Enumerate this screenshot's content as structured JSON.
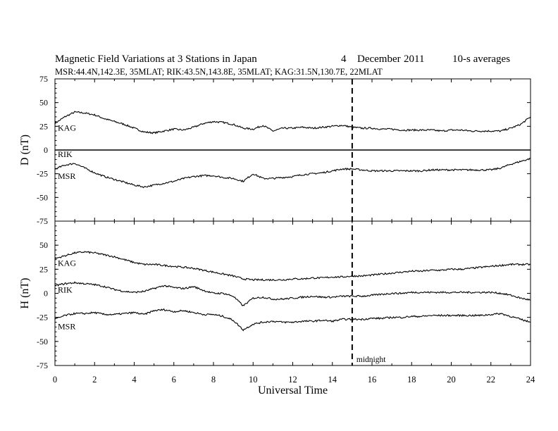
{
  "header": {
    "title": "Magnetic Field Variations at 3 Stations in Japan",
    "day": "4",
    "month": "December",
    "year": "2011",
    "averaging": "10-s averages",
    "subtitle": "MSR:44.4N,142.3E, 35MLAT;  RIK:43.5N,143.8E, 35MLAT;  KAG:31.5N,130.7E, 22MLAT"
  },
  "chart_data": [
    {
      "type": "line",
      "panel": "top",
      "ylabel": "D (nT)",
      "ylim": [
        -75,
        75
      ],
      "yticks": [
        "75",
        "50",
        "25",
        "0",
        "-25",
        "-50",
        "-75"
      ],
      "xlim": [
        0,
        24
      ],
      "series": [
        {
          "name": "KAG",
          "x": [
            0,
            0.5,
            1,
            1.5,
            2,
            2.5,
            3,
            3.5,
            4,
            4.5,
            5,
            5.5,
            6,
            6.5,
            7,
            7.5,
            8,
            8.5,
            9,
            9.5,
            10,
            10.5,
            11,
            11.5,
            12,
            12.5,
            13,
            13.5,
            14,
            14.5,
            15,
            15.5,
            16,
            16.5,
            17,
            17.5,
            18,
            18.5,
            19,
            19.5,
            20,
            20.5,
            21,
            21.5,
            22,
            22.5,
            23,
            23.5,
            24
          ],
          "y": [
            28,
            35,
            40,
            39,
            37,
            33,
            30,
            27,
            23,
            19,
            18,
            20,
            22,
            21,
            24,
            28,
            30,
            29,
            27,
            23,
            22,
            26,
            20,
            23,
            23,
            24,
            23,
            24,
            25,
            26,
            24,
            23,
            23,
            22,
            22,
            21,
            21,
            21,
            21,
            20,
            21,
            21,
            20,
            20,
            20,
            20,
            23,
            27,
            35
          ]
        },
        {
          "name": "RIK",
          "x": [
            0,
            24
          ],
          "y": [
            0,
            0
          ]
        },
        {
          "name": "MSR",
          "x": [
            0,
            0.5,
            1,
            1.5,
            2,
            2.5,
            3,
            3.5,
            4,
            4.5,
            5,
            5.5,
            6,
            6.5,
            7,
            7.5,
            8,
            8.5,
            9,
            9.5,
            10,
            10.5,
            11,
            11.5,
            12,
            12.5,
            13,
            13.5,
            14,
            14.5,
            15,
            15.5,
            16,
            16.5,
            17,
            17.5,
            18,
            18.5,
            19,
            19.5,
            20,
            20.5,
            21,
            21.5,
            22,
            22.5,
            23,
            23.5,
            24
          ],
          "y": [
            -20,
            -16,
            -14,
            -19,
            -24,
            -28,
            -31,
            -34,
            -37,
            -39,
            -37,
            -35,
            -33,
            -30,
            -28,
            -27,
            -27,
            -29,
            -30,
            -33,
            -25,
            -30,
            -30,
            -29,
            -28,
            -26,
            -25,
            -24,
            -22,
            -20,
            -20,
            -21,
            -22,
            -22,
            -22,
            -22,
            -22,
            -22,
            -21,
            -21,
            -21,
            -21,
            -21,
            -21,
            -21,
            -19,
            -15,
            -12,
            -9
          ]
        }
      ]
    },
    {
      "type": "line",
      "panel": "bottom",
      "ylabel": "H (nT)",
      "xlabel": "Universal Time",
      "ylim": [
        -75,
        75
      ],
      "yticks": [
        "",
        "50",
        "25",
        "0",
        "-25",
        "-50",
        "-75"
      ],
      "xlim": [
        0,
        24
      ],
      "xticks": [
        "0",
        "2",
        "4",
        "6",
        "8",
        "10",
        "12",
        "14",
        "16",
        "18",
        "20",
        "22",
        "24"
      ],
      "series": [
        {
          "name": "KAG",
          "x": [
            0,
            0.5,
            1,
            1.5,
            2,
            2.5,
            3,
            3.5,
            4,
            4.5,
            5,
            5.5,
            6,
            6.5,
            7,
            7.5,
            8,
            8.5,
            9,
            9.5,
            10,
            10.5,
            11,
            11.5,
            12,
            12.5,
            13,
            13.5,
            14,
            14.5,
            15,
            15.5,
            16,
            16.5,
            17,
            17.5,
            18,
            18.5,
            19,
            19.5,
            20,
            20.5,
            21,
            21.5,
            22,
            22.5,
            23,
            23.5,
            24
          ],
          "y": [
            36,
            39,
            42,
            43,
            42,
            40,
            38,
            35,
            32,
            30,
            30,
            29,
            28,
            27,
            26,
            24,
            22,
            20,
            18,
            15,
            14,
            14,
            14,
            14,
            15,
            15,
            16,
            16,
            17,
            17,
            18,
            18,
            19,
            20,
            21,
            22,
            23,
            23,
            24,
            24,
            25,
            25,
            26,
            27,
            28,
            29,
            30,
            30,
            30
          ]
        },
        {
          "name": "RIK",
          "x": [
            0,
            0.5,
            1,
            1.5,
            2,
            2.5,
            3,
            3.5,
            4,
            4.5,
            5,
            5.5,
            6,
            6.5,
            7,
            7.5,
            8,
            8.5,
            9,
            9.5,
            10,
            10.5,
            11,
            11.5,
            12,
            12.5,
            13,
            13.5,
            14,
            14.5,
            15,
            15.5,
            16,
            16.5,
            17,
            17.5,
            18,
            18.5,
            19,
            19.5,
            20,
            20.5,
            21,
            21.5,
            22,
            22.5,
            23,
            23.5,
            24
          ],
          "y": [
            8,
            10,
            11,
            10,
            9,
            7,
            4,
            2,
            1,
            2,
            5,
            8,
            6,
            5,
            7,
            3,
            0,
            0,
            -3,
            -13,
            -5,
            -4,
            -6,
            -6,
            -5,
            -4,
            -3,
            -4,
            -4,
            -3,
            -3,
            -3,
            -2,
            -1,
            0,
            0,
            1,
            1,
            1,
            1,
            1,
            1,
            1,
            1,
            1,
            0,
            -2,
            -5,
            -7
          ]
        },
        {
          "name": "MSR",
          "x": [
            0,
            0.5,
            1,
            1.5,
            2,
            2.5,
            3,
            3.5,
            4,
            4.5,
            5,
            5.5,
            6,
            6.5,
            7,
            7.5,
            8,
            8.5,
            9,
            9.5,
            10,
            10.5,
            11,
            11.5,
            12,
            12.5,
            13,
            13.5,
            14,
            14.5,
            15,
            15.5,
            16,
            16.5,
            17,
            17.5,
            18,
            18.5,
            19,
            19.5,
            20,
            20.5,
            21,
            21.5,
            22,
            22.5,
            23,
            23.5,
            24
          ],
          "y": [
            -27,
            -23,
            -21,
            -21,
            -20,
            -22,
            -22,
            -21,
            -20,
            -22,
            -18,
            -17,
            -19,
            -18,
            -20,
            -22,
            -22,
            -24,
            -28,
            -38,
            -32,
            -30,
            -29,
            -30,
            -30,
            -29,
            -29,
            -28,
            -29,
            -27,
            -27,
            -27,
            -26,
            -26,
            -25,
            -25,
            -24,
            -24,
            -23,
            -23,
            -23,
            -23,
            -23,
            -23,
            -22,
            -21,
            -24,
            -27,
            -30
          ]
        }
      ]
    }
  ],
  "annotations": {
    "midnight_label": "midnight",
    "midnight_ut": 15
  }
}
